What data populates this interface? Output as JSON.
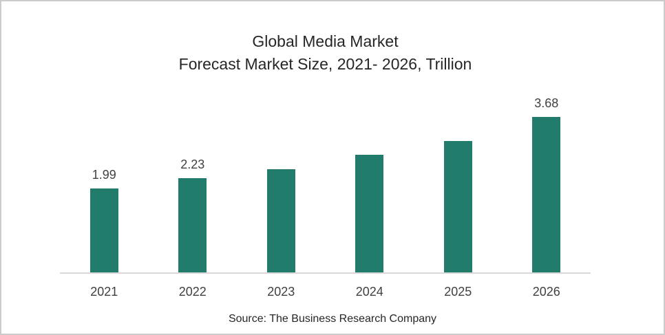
{
  "colors": {
    "bar": "#217c6c",
    "page_border": "#cbcbcb",
    "axis_line": "#d9d9d9",
    "title_text": "#262626",
    "label_text": "#404040"
  },
  "chart_data": {
    "type": "bar",
    "title_lines": [
      "Global Media Market",
      "Forecast Market Size, 2021- 2026, Trillion"
    ],
    "categories": [
      "2021",
      "2022",
      "2023",
      "2024",
      "2025",
      "2026"
    ],
    "values": [
      1.99,
      2.23,
      2.45,
      2.79,
      3.11,
      3.68
    ],
    "data_labels": [
      "1.99",
      "2.23",
      "",
      "",
      "",
      "3.68"
    ],
    "bar_color": "#217c6c",
    "xlabel": "",
    "ylabel": "",
    "ylim": [
      0,
      4.33
    ],
    "grid": false,
    "y_axis_visible": false,
    "legend": false,
    "source": "Source: The Business Research Company"
  }
}
